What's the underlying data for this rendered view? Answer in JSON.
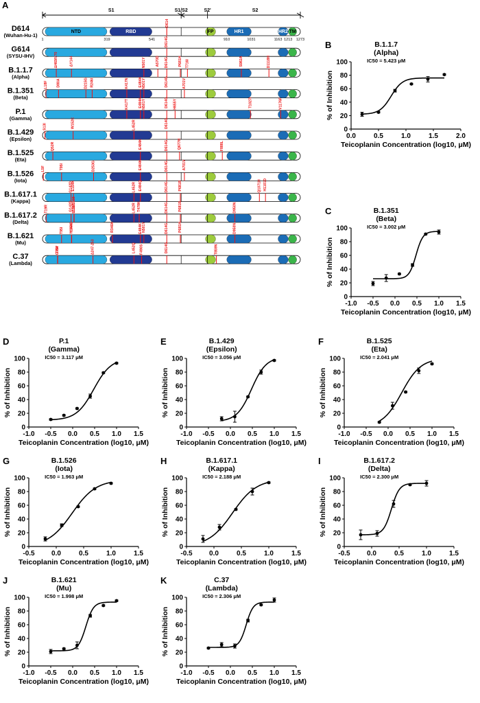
{
  "panel_a": {
    "letter": "A",
    "regions": [
      {
        "id": "s1",
        "label": "S1"
      },
      {
        "id": "s1s2",
        "label": "S1/S2"
      },
      {
        "id": "s2p",
        "label": "S2'"
      },
      {
        "id": "s2",
        "label": "S2"
      }
    ],
    "domains": [
      {
        "id": "ntd",
        "label": "NTD",
        "color": "#29a9e0"
      },
      {
        "id": "rbd",
        "label": "RBD",
        "color": "#223a93"
      },
      {
        "id": "fp",
        "label": "FP",
        "color": "#9dcb3c"
      },
      {
        "id": "hr1",
        "label": "HR1",
        "color": "#1b6cb6"
      },
      {
        "id": "hr2",
        "label": "HR2",
        "color": "#1b6cb6"
      },
      {
        "id": "tm",
        "label": "TM",
        "color": "#3bb54a"
      }
    ],
    "positions": [
      "1",
      "319",
      "541",
      "910",
      "1031",
      "1163",
      "1213",
      "1273"
    ],
    "variants": [
      {
        "name": "D614",
        "sub": "(Wuhan-Hu-1)",
        "mutations": [
          {
            "label": "D614",
            "pos": 614
          }
        ]
      },
      {
        "name": "G614",
        "sub": "(SYSU-IHV)",
        "mutations": [
          {
            "label": "D614G",
            "pos": 614
          }
        ]
      },
      {
        "name": "B.1.1.7",
        "sub": "(Alpha)",
        "mutations": [
          {
            "label": "ΔH69/V70",
            "pos": 69
          },
          {
            "label": "ΔY144",
            "pos": 144
          },
          {
            "label": "N501Y",
            "pos": 501
          },
          {
            "label": "A570D",
            "pos": 570
          },
          {
            "label": "D614G",
            "pos": 614
          },
          {
            "label": "P681H",
            "pos": 681
          },
          {
            "label": "T716I",
            "pos": 716
          },
          {
            "label": "S982A",
            "pos": 982
          },
          {
            "label": "D1118H",
            "pos": 1118
          }
        ]
      },
      {
        "name": "B.1.351",
        "sub": "(Beta)",
        "mutations": [
          {
            "label": "L18F",
            "pos": 18
          },
          {
            "label": "D80A",
            "pos": 80
          },
          {
            "label": "D215G",
            "pos": 215
          },
          {
            "label": "R246I",
            "pos": 246
          },
          {
            "label": "K417N",
            "pos": 417
          },
          {
            "label": "E484K",
            "pos": 484
          },
          {
            "label": "N501Y",
            "pos": 501
          },
          {
            "label": "D614G",
            "pos": 614
          },
          {
            "label": "A701V",
            "pos": 701
          }
        ]
      },
      {
        "name": "P.1",
        "sub": "(Gamma)",
        "mutations": [
          {
            "label": "K417T",
            "pos": 417
          },
          {
            "label": "E484K",
            "pos": 484
          },
          {
            "label": "N501Y",
            "pos": 501
          },
          {
            "label": "D614G",
            "pos": 614
          },
          {
            "label": "H655Y",
            "pos": 655
          },
          {
            "label": "T1027I",
            "pos": 1027
          },
          {
            "label": "V1176F",
            "pos": 1176
          }
        ]
      },
      {
        "name": "B.1.429",
        "sub": "(Epsilon)",
        "mutations": [
          {
            "label": "S13I",
            "pos": 13
          },
          {
            "label": "W152C",
            "pos": 152
          },
          {
            "label": "L452R",
            "pos": 452
          },
          {
            "label": "D614G",
            "pos": 614
          }
        ]
      },
      {
        "name": "B.1.525",
        "sub": "(Eta)",
        "mutations": [
          {
            "label": "Q52R",
            "pos": 52
          },
          {
            "label": "E484K",
            "pos": 484
          },
          {
            "label": "D614G",
            "pos": 614
          },
          {
            "label": "Q677H",
            "pos": 677
          },
          {
            "label": "F888L",
            "pos": 888
          }
        ]
      },
      {
        "name": "B.1.526",
        "sub": "(Iota)",
        "mutations": [
          {
            "label": "L5F",
            "pos": 5
          },
          {
            "label": "T95I",
            "pos": 95
          },
          {
            "label": "D253G",
            "pos": 253
          },
          {
            "label": "E484K",
            "pos": 484
          },
          {
            "label": "D614G",
            "pos": 614
          },
          {
            "label": "A701V",
            "pos": 701
          }
        ]
      },
      {
        "name": "B.1.617.1",
        "sub": "(Kappa)",
        "mutations": [
          {
            "label": "G142D",
            "pos": 142
          },
          {
            "label": "E154K",
            "pos": 154
          },
          {
            "label": "L452R",
            "pos": 452
          },
          {
            "label": "E484Q",
            "pos": 484
          },
          {
            "label": "D614G",
            "pos": 614
          },
          {
            "label": "P681R",
            "pos": 681
          },
          {
            "label": "Q1071H",
            "pos": 1071
          },
          {
            "label": "H1101D",
            "pos": 1101
          }
        ]
      },
      {
        "name": "B.1.617.2",
        "sub": "(Delta)",
        "mutations": [
          {
            "label": "T19R",
            "pos": 19
          },
          {
            "label": "G142D",
            "pos": 142
          },
          {
            "label": "E156G",
            "pos": 156
          },
          {
            "label": "Δ157/158",
            "pos": 157
          },
          {
            "label": "L452R",
            "pos": 452
          },
          {
            "label": "T478K",
            "pos": 478
          },
          {
            "label": "D614G",
            "pos": 614
          },
          {
            "label": "P681R",
            "pos": 681
          },
          {
            "label": "D950N",
            "pos": 950
          }
        ]
      },
      {
        "name": "B.1.621",
        "sub": "(Mu)",
        "mutations": [
          {
            "label": "T95I",
            "pos": 95
          },
          {
            "label": "Y144S",
            "pos": 144
          },
          {
            "label": "Y145N",
            "pos": 145
          },
          {
            "label": "R346K",
            "pos": 346
          },
          {
            "label": "E484K",
            "pos": 484
          },
          {
            "label": "N501Y",
            "pos": 501
          },
          {
            "label": "D614G",
            "pos": 614
          },
          {
            "label": "P681H",
            "pos": 681
          },
          {
            "label": "D950N",
            "pos": 950
          }
        ]
      },
      {
        "name": "C.37",
        "sub": "(Lambda)",
        "mutations": [
          {
            "label": "G75V",
            "pos": 75
          },
          {
            "label": "T76I",
            "pos": 76
          },
          {
            "label": "Δ247-253",
            "pos": 250
          },
          {
            "label": "L452Q",
            "pos": 452
          },
          {
            "label": "F490S",
            "pos": 490
          },
          {
            "label": "D614G",
            "pos": 614
          },
          {
            "label": "T859N",
            "pos": 859
          }
        ]
      }
    ]
  },
  "chart_data": [
    {
      "letter": "B",
      "type": "scatter",
      "title": "B.1.1.7",
      "subtitle": "(Alpha)",
      "ic50": "IC50 = 5.423 μM",
      "xlabel": "Teicoplanin Concentration (log10, μM)",
      "ylabel": "% of Inhibition",
      "xlim": [
        0,
        2
      ],
      "ylim": [
        0,
        100
      ],
      "xticks": [
        "0.0",
        "0.5",
        "1.0",
        "1.5",
        "2.0"
      ],
      "yticks": [
        "0",
        "20",
        "40",
        "60",
        "80",
        "100"
      ],
      "points": [
        [
          0.2,
          22
        ],
        [
          0.5,
          25
        ],
        [
          0.8,
          57
        ],
        [
          1.1,
          67
        ],
        [
          1.4,
          74
        ],
        [
          1.7,
          81
        ]
      ],
      "err": [
        3,
        1,
        2,
        1,
        4,
        1
      ],
      "fit": {
        "bottom": 22,
        "top": 76,
        "logic50": 0.73,
        "hill": 4.2
      }
    },
    {
      "letter": "C",
      "type": "scatter",
      "title": "B.1.351",
      "subtitle": "(Beta)",
      "ic50": "IC50 = 3.002 μM",
      "xlabel": "Teicoplanin Concentration (log10, μM)",
      "ylabel": "% of Inhibition",
      "xlim": [
        -1,
        1.5
      ],
      "ylim": [
        0,
        100
      ],
      "xticks": [
        "-1.0",
        "-0.5",
        "0.0",
        "0.5",
        "1.0",
        "1.5"
      ],
      "yticks": [
        "0",
        "20",
        "40",
        "60",
        "80",
        "100"
      ],
      "points": [
        [
          -0.5,
          19
        ],
        [
          -0.2,
          27
        ],
        [
          0.1,
          33
        ],
        [
          0.4,
          46
        ],
        [
          0.7,
          91
        ],
        [
          1.0,
          94
        ]
      ],
      "err": [
        3,
        5,
        1,
        2,
        1,
        3
      ],
      "fit": {
        "bottom": 26,
        "top": 95,
        "logic50": 0.48,
        "hill": 5.5
      }
    },
    {
      "letter": "D",
      "type": "scatter",
      "title": "P.1",
      "subtitle": "(Gamma)",
      "ic50": "IC50 = 3.117 μM",
      "xlabel": "Teicoplanin Concentration (log10, μM)",
      "ylabel": "% of Inhibition",
      "xlim": [
        -1,
        1.5
      ],
      "ylim": [
        0,
        100
      ],
      "xticks": [
        "-1.0",
        "-0.5",
        "0.0",
        "0.5",
        "1.0",
        "1.5"
      ],
      "yticks": [
        "0",
        "20",
        "40",
        "60",
        "80",
        "100"
      ],
      "points": [
        [
          -0.5,
          11
        ],
        [
          -0.2,
          17
        ],
        [
          0.1,
          27
        ],
        [
          0.4,
          45
        ],
        [
          0.7,
          79
        ],
        [
          1.0,
          93
        ]
      ],
      "err": [
        1,
        1,
        1,
        3,
        1,
        1
      ],
      "fit": {
        "bottom": 10,
        "top": 100,
        "logic50": 0.48,
        "hill": 2.2
      }
    },
    {
      "letter": "E",
      "type": "scatter",
      "title": "B.1.429",
      "subtitle": "(Epsilon)",
      "ic50": "IC50 = 3.056 μM",
      "xlabel": "Teicoplanin Concentration (log10, μM)",
      "ylabel": "% of Inhibition",
      "xlim": [
        -1,
        1.5
      ],
      "ylim": [
        0,
        100
      ],
      "xticks": [
        "-1.0",
        "-0.5",
        "0.0",
        "0.5",
        "1.0",
        "1.5"
      ],
      "yticks": [
        "0",
        "20",
        "40",
        "60",
        "80",
        "100"
      ],
      "points": [
        [
          -0.2,
          12
        ],
        [
          0.1,
          15
        ],
        [
          0.4,
          44
        ],
        [
          0.7,
          80
        ],
        [
          1.0,
          97
        ]
      ],
      "err": [
        3,
        8,
        1,
        3,
        1
      ],
      "fit": {
        "bottom": 8,
        "top": 102,
        "logic50": 0.48,
        "hill": 2.6
      }
    },
    {
      "letter": "F",
      "type": "scatter",
      "title": "B.1.525",
      "subtitle": "(Eta)",
      "ic50": "IC50 = 2.041 μM",
      "xlabel": "Teicoplanin Concentration (log10, μM)",
      "ylabel": "% of Inhibition",
      "xlim": [
        -1,
        1.5
      ],
      "ylim": [
        0,
        100
      ],
      "xticks": [
        "-1.0",
        "-0.5",
        "0.0",
        "0.5",
        "1.0",
        "1.5"
      ],
      "yticks": [
        "0",
        "20",
        "40",
        "60",
        "80",
        "100"
      ],
      "points": [
        [
          -0.2,
          7
        ],
        [
          0.1,
          31
        ],
        [
          0.4,
          51
        ],
        [
          0.7,
          82
        ],
        [
          1.0,
          92
        ]
      ],
      "err": [
        1,
        5,
        1,
        4,
        1
      ],
      "fit": {
        "bottom": 0,
        "top": 100,
        "logic50": 0.31,
        "hill": 2.0
      }
    },
    {
      "letter": "G",
      "type": "scatter",
      "title": "B.1.526",
      "subtitle": "(Iota)",
      "ic50": "IC50 = 1.963 μM",
      "xlabel": "Teicoplanin Concentration (log10, μM)",
      "ylabel": "% of Inhibition",
      "xlim": [
        -0.5,
        1.5
      ],
      "ylim": [
        0,
        100
      ],
      "xticks": [
        "-0.5",
        "0.0",
        "0.5",
        "1.0",
        "1.5"
      ],
      "yticks": [
        "0",
        "20",
        "40",
        "60",
        "80",
        "100"
      ],
      "points": [
        [
          -0.2,
          11
        ],
        [
          0.1,
          31
        ],
        [
          0.4,
          58
        ],
        [
          0.7,
          84
        ],
        [
          1.0,
          92
        ]
      ],
      "err": [
        3,
        2,
        1,
        1,
        1
      ],
      "fit": {
        "bottom": 0,
        "top": 97,
        "logic50": 0.29,
        "hill": 2.0
      }
    },
    {
      "letter": "H",
      "type": "scatter",
      "title": "B.1.617.1",
      "subtitle": "(Kappa)",
      "ic50": "IC50 = 2.188 μM",
      "xlabel": "Teicoplanin Concentration (log10, μM)",
      "ylabel": "% of Inhibition",
      "xlim": [
        -0.5,
        1.5
      ],
      "ylim": [
        0,
        100
      ],
      "xticks": [
        "-0.5",
        "0.0",
        "0.5",
        "1.0",
        "1.5"
      ],
      "yticks": [
        "0",
        "20",
        "40",
        "60",
        "80",
        "100"
      ],
      "points": [
        [
          -0.2,
          11
        ],
        [
          0.1,
          28
        ],
        [
          0.4,
          54
        ],
        [
          0.7,
          80
        ],
        [
          1.0,
          93
        ]
      ],
      "err": [
        5,
        4,
        1,
        5,
        1
      ],
      "fit": {
        "bottom": 0,
        "top": 98,
        "logic50": 0.34,
        "hill": 2.0
      }
    },
    {
      "letter": "I",
      "type": "scatter",
      "title": "B.1.617.2",
      "subtitle": "(Delta)",
      "ic50": "IC50 = 2.300 μM",
      "xlabel": "Teicoplanin Concentration (log10, μM)",
      "ylabel": "% of Inhibition",
      "xlim": [
        -0.5,
        1.5
      ],
      "ylim": [
        0,
        100
      ],
      "xticks": [
        "-0.5",
        "0.0",
        "0.5",
        "1.0",
        "1.5"
      ],
      "yticks": [
        "0",
        "20",
        "40",
        "60",
        "80",
        "100"
      ],
      "points": [
        [
          -0.2,
          17
        ],
        [
          0.1,
          19
        ],
        [
          0.4,
          62
        ],
        [
          0.7,
          90
        ],
        [
          1.0,
          92
        ]
      ],
      "err": [
        7,
        4,
        5,
        1,
        4
      ],
      "fit": {
        "bottom": 17,
        "top": 92,
        "logic50": 0.36,
        "hill": 6.0
      }
    },
    {
      "letter": "J",
      "type": "scatter",
      "title": "B.1.621",
      "subtitle": "(Mu)",
      "ic50": "IC50 = 1.998 μM",
      "xlabel": "Teicoplanin Concentration (log10, μM)",
      "ylabel": "% of Inhibition",
      "xlim": [
        -1,
        1.5
      ],
      "ylim": [
        0,
        100
      ],
      "xticks": [
        "-1.0",
        "-0.5",
        "0.0",
        "0.5",
        "1.0",
        "1.5"
      ],
      "yticks": [
        "0",
        "20",
        "40",
        "60",
        "80",
        "100"
      ],
      "points": [
        [
          -0.5,
          21
        ],
        [
          -0.2,
          25
        ],
        [
          0.1,
          30
        ],
        [
          0.4,
          73
        ],
        [
          0.7,
          88
        ],
        [
          1.0,
          95
        ]
      ],
      "err": [
        3,
        1,
        5,
        2,
        1,
        1
      ],
      "fit": {
        "bottom": 22,
        "top": 93,
        "logic50": 0.3,
        "hill": 5.0
      }
    },
    {
      "letter": "K",
      "type": "scatter",
      "title": "C.37",
      "subtitle": "(Lambda)",
      "ic50": "IC50 = 2.306 μM",
      "xlabel": "Teicoplanin Concentration (log10, μM)",
      "ylabel": "% of Inhibition",
      "xlim": [
        -1,
        1.5
      ],
      "ylim": [
        0,
        100
      ],
      "xticks": [
        "-1.0",
        "-0.5",
        "0.0",
        "0.5",
        "1.0",
        "1.5"
      ],
      "yticks": [
        "0",
        "20",
        "40",
        "60",
        "80",
        "100"
      ],
      "points": [
        [
          -0.5,
          26
        ],
        [
          -0.2,
          31
        ],
        [
          0.1,
          29
        ],
        [
          0.4,
          66
        ],
        [
          0.7,
          89
        ],
        [
          1.0,
          96
        ]
      ],
      "err": [
        1,
        3,
        3,
        2,
        1,
        3
      ],
      "fit": {
        "bottom": 27,
        "top": 93,
        "logic50": 0.36,
        "hill": 5.5
      }
    }
  ]
}
